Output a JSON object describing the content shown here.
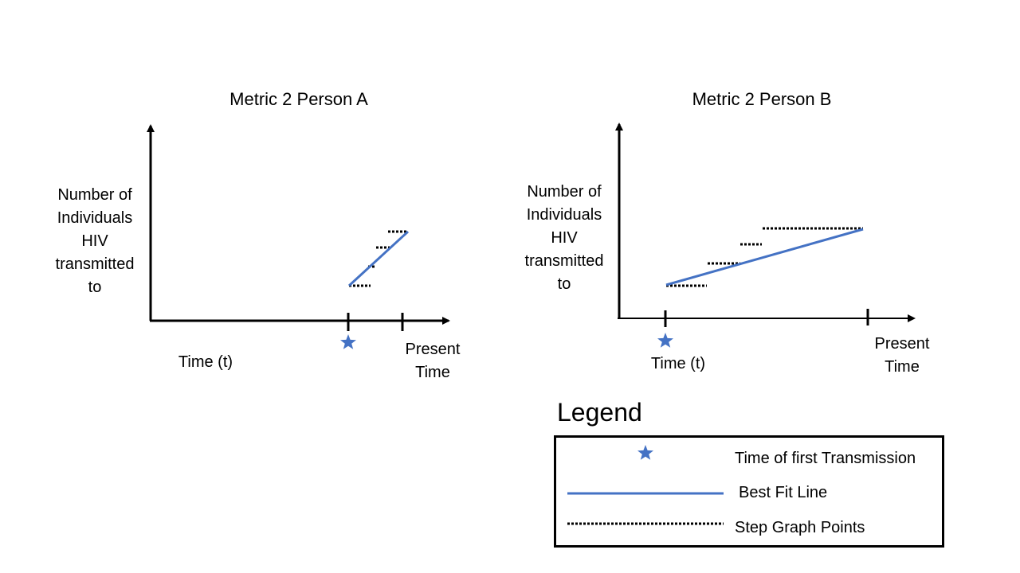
{
  "colors": {
    "axis": "#000000",
    "fit_line": "#4472C4",
    "star": "#4472C4",
    "steps": "#000000"
  },
  "panel_a": {
    "title": "Metric 2 Person A",
    "ylabel": [
      "Number of",
      "Individuals",
      "HIV",
      "transmitted",
      "to"
    ],
    "xlabel": "Time (t)",
    "present_label": [
      "Present",
      "Time"
    ]
  },
  "panel_b": {
    "title": "Metric 2 Person B",
    "ylabel": [
      "Number of",
      "Individuals",
      "HIV",
      "transmitted",
      "to"
    ],
    "xlabel": "Time (t)",
    "present_label": [
      "Present",
      "Time"
    ]
  },
  "legend": {
    "title": "Legend",
    "items": [
      {
        "icon": "star-icon",
        "label": "Time of first Transmission"
      },
      {
        "icon": "solid-line",
        "label": "Best Fit Line"
      },
      {
        "icon": "dotted-line",
        "label": "Step Graph Points"
      }
    ]
  }
}
